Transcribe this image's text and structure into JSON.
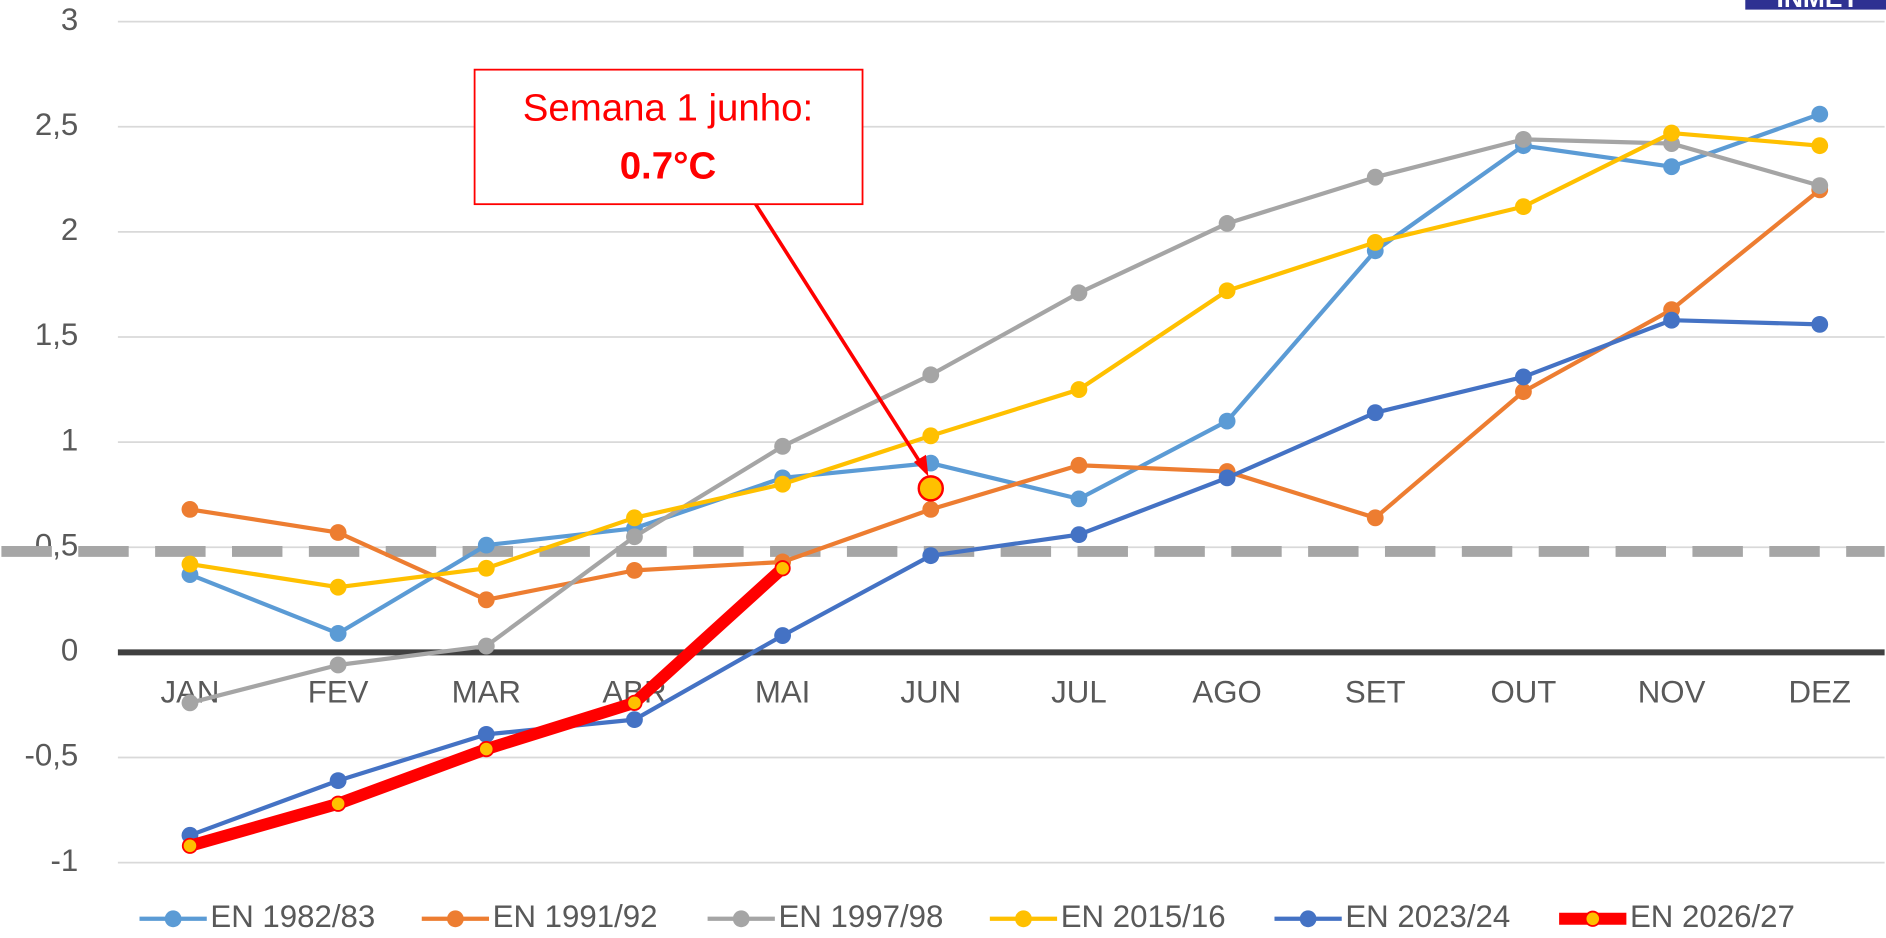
{
  "chart_data": {
    "type": "line",
    "categories": [
      "JAN",
      "FEV",
      "MAR",
      "ABR",
      "MAI",
      "JUN",
      "JUL",
      "AGO",
      "SET",
      "OUT",
      "NOV",
      "DEZ"
    ],
    "series": [
      {
        "name": "EN 1982/83",
        "color": "#5b9bd5",
        "values": [
          0.37,
          0.09,
          0.51,
          0.59,
          0.83,
          0.9,
          0.73,
          1.1,
          1.91,
          2.41,
          2.31,
          2.56
        ]
      },
      {
        "name": "EN 1991/92",
        "color": "#ed7d31",
        "values": [
          0.68,
          0.57,
          0.25,
          0.39,
          0.43,
          0.68,
          0.89,
          0.86,
          0.64,
          1.24,
          1.63,
          2.2
        ]
      },
      {
        "name": "EN 1997/98",
        "color": "#a5a5a5",
        "values": [
          -0.24,
          -0.06,
          0.03,
          0.55,
          0.98,
          1.32,
          1.71,
          2.04,
          2.26,
          2.44,
          2.42,
          2.22
        ]
      },
      {
        "name": "EN 2015/16",
        "color": "#ffc000",
        "values": [
          0.42,
          0.31,
          0.4,
          0.64,
          0.8,
          1.03,
          1.25,
          1.72,
          1.95,
          2.12,
          2.47,
          2.41
        ]
      },
      {
        "name": "EN 2023/24",
        "color": "#4472c4",
        "values": [
          -0.87,
          -0.61,
          -0.39,
          -0.32,
          0.08,
          0.46,
          0.56,
          0.83,
          1.14,
          1.31,
          1.58,
          1.56
        ]
      },
      {
        "name": "EN 2026/27",
        "color": "#ff0000",
        "marker_color": "#ffc000",
        "values": [
          -0.92,
          -0.72,
          -0.46,
          -0.24,
          0.4,
          null,
          null,
          null,
          null,
          null,
          null,
          null
        ]
      }
    ],
    "ylim": [
      -1.15,
      3.0
    ],
    "yticks": [
      {
        "value": -1,
        "label": "-1"
      },
      {
        "value": -0.5,
        "label": "-0,5"
      },
      0,
      {
        "value": 0.5,
        "label": "0,5"
      },
      1,
      {
        "value": 1.5,
        "label": "1,5"
      },
      2,
      {
        "value": 2.5,
        "label": "2,5"
      },
      3
    ],
    "grid": true,
    "reference_line": 0.48,
    "annotation": {
      "line1": "Semana 1 junho:",
      "line2": "0.7°C",
      "category": "JUN",
      "value": 0.78
    },
    "logo": "INMET",
    "legend": "bottom"
  }
}
